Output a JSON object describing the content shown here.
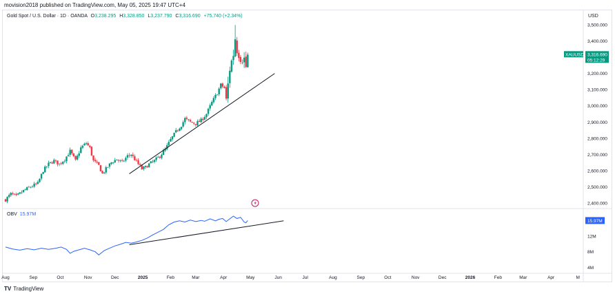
{
  "header": {
    "published_text": "movision2018 published on TradingView.com, May 05, 2025 19:47 UTC+4"
  },
  "legend": {
    "symbol": "Gold Spot / U.S. Dollar · 1D · OANDA",
    "open_label": "O",
    "open": "3,238.295",
    "high_label": "H",
    "high": "3,328.850",
    "low_label": "L",
    "low": "3,237.790",
    "close_label": "C",
    "close": "3,316.690",
    "change": "+75.740 (+2.34%)"
  },
  "currency": "USD",
  "price_tag": {
    "symbol": "XAUUSD",
    "price": "3,316.690",
    "countdown": "05:12:29"
  },
  "obv": {
    "label": "OBV",
    "value": "15.97M",
    "tag": "15.97M"
  },
  "footer": {
    "brand": "TradingView",
    "logo_glyph": "TV"
  },
  "colors": {
    "up": "#089981",
    "down": "#f23645",
    "obv": "#2962ff",
    "trend": "#131722",
    "tag": "#089981",
    "obv_tag": "#2962ff"
  },
  "chart_data": [
    {
      "type": "candlestick",
      "title": "Gold Spot / U.S. Dollar · 1D · OANDA",
      "yaxis": {
        "ticks": [
          2400,
          2500,
          2600,
          2700,
          2800,
          2900,
          3000,
          3100,
          3200,
          3300,
          3400,
          3500
        ],
        "tick_labels": [
          "2,400.000",
          "2,500.000",
          "2,600.000",
          "2,700.000",
          "2,800.000",
          "2,900.000",
          "3,000.000",
          "3,100.000",
          "3,200.000",
          "3,300.000",
          "3,400.000",
          "3,500.000"
        ],
        "ylim": [
          2365,
          3535
        ]
      },
      "xaxis": {
        "labels": [
          "Aug",
          "Sep",
          "Oct",
          "Nov",
          "Dec",
          "2025",
          "Feb",
          "Mar",
          "Apr",
          "May",
          "Jun",
          "Jul",
          "Aug",
          "Sep",
          "Oct",
          "Nov",
          "Dec",
          "2026",
          "Feb",
          "Mar",
          "Apr",
          "M"
        ],
        "label_days": [
          0,
          31,
          61,
          92,
          122,
          153,
          184,
          212,
          243,
          273,
          304,
          334,
          365,
          396,
          426,
          457,
          487,
          518,
          549,
          577,
          608,
          638
        ]
      },
      "close_path": [
        [
          0,
          2420
        ],
        [
          6,
          2455
        ],
        [
          12,
          2440
        ],
        [
          20,
          2475
        ],
        [
          28,
          2500
        ],
        [
          36,
          2520
        ],
        [
          42,
          2600
        ],
        [
          48,
          2640
        ],
        [
          54,
          2660
        ],
        [
          60,
          2640
        ],
        [
          66,
          2670
        ],
        [
          72,
          2720
        ],
        [
          78,
          2660
        ],
        [
          84,
          2740
        ],
        [
          90,
          2770
        ],
        [
          94,
          2740
        ],
        [
          98,
          2660
        ],
        [
          104,
          2630
        ],
        [
          108,
          2580
        ],
        [
          112,
          2610
        ],
        [
          118,
          2650
        ],
        [
          124,
          2670
        ],
        [
          130,
          2650
        ],
        [
          136,
          2690
        ],
        [
          140,
          2700
        ],
        [
          144,
          2670
        ],
        [
          148,
          2640
        ],
        [
          152,
          2610
        ],
        [
          156,
          2620
        ],
        [
          160,
          2640
        ],
        [
          166,
          2660
        ],
        [
          172,
          2690
        ],
        [
          178,
          2730
        ],
        [
          184,
          2790
        ],
        [
          190,
          2840
        ],
        [
          196,
          2880
        ],
        [
          200,
          2920
        ],
        [
          206,
          2900
        ],
        [
          212,
          2890
        ],
        [
          218,
          2910
        ],
        [
          224,
          2950
        ],
        [
          230,
          3020
        ],
        [
          236,
          3080
        ],
        [
          240,
          3130
        ],
        [
          244,
          3110
        ],
        [
          246,
          3030
        ],
        [
          250,
          3230
        ],
        [
          254,
          3320
        ],
        [
          256,
          3420
        ],
        [
          258,
          3350
        ],
        [
          262,
          3300
        ],
        [
          266,
          3290
        ],
        [
          268,
          3240
        ],
        [
          270,
          3316.69
        ]
      ],
      "last_candle": {
        "open": 3238.295,
        "high": 3328.85,
        "low": 3237.79,
        "close": 3316.69
      },
      "trendline": [
        [
          138,
          2580
        ],
        [
          300,
          3200
        ]
      ]
    },
    {
      "type": "line",
      "name": "OBV",
      "yaxis": {
        "ticks": [
          4,
          8,
          12
        ],
        "tick_labels": [
          "4M",
          "8M",
          "12M"
        ],
        "ylim": [
          2.5,
          18.5
        ]
      },
      "last_value": 15.97,
      "series": [
        [
          0,
          9.2
        ],
        [
          8,
          8.7
        ],
        [
          16,
          8.4
        ],
        [
          24,
          8.8
        ],
        [
          32,
          8.5
        ],
        [
          40,
          8.9
        ],
        [
          48,
          8.6
        ],
        [
          56,
          8.9
        ],
        [
          62,
          9.2
        ],
        [
          68,
          8.6
        ],
        [
          72,
          7.6
        ],
        [
          76,
          8.1
        ],
        [
          82,
          8.5
        ],
        [
          88,
          8.9
        ],
        [
          94,
          8.5
        ],
        [
          100,
          8.0
        ],
        [
          104,
          7.2
        ],
        [
          110,
          8.3
        ],
        [
          116,
          8.9
        ],
        [
          122,
          9.5
        ],
        [
          128,
          9.9
        ],
        [
          134,
          10.4
        ],
        [
          140,
          10.2
        ],
        [
          146,
          10.5
        ],
        [
          152,
          10.9
        ],
        [
          158,
          11.5
        ],
        [
          164,
          12.3
        ],
        [
          170,
          13.0
        ],
        [
          176,
          13.7
        ],
        [
          182,
          14.9
        ],
        [
          188,
          15.6
        ],
        [
          194,
          15.9
        ],
        [
          200,
          15.6
        ],
        [
          206,
          16.1
        ],
        [
          212,
          15.7
        ],
        [
          218,
          16.0
        ],
        [
          222,
          15.8
        ],
        [
          228,
          16.4
        ],
        [
          234,
          15.9
        ],
        [
          238,
          16.3
        ],
        [
          242,
          16.5
        ],
        [
          246,
          15.7
        ],
        [
          250,
          16.4
        ],
        [
          254,
          17.1
        ],
        [
          258,
          16.5
        ],
        [
          262,
          16.8
        ],
        [
          266,
          15.6
        ],
        [
          268,
          15.4
        ],
        [
          270,
          15.97
        ]
      ],
      "trendline": [
        [
          138,
          9.8
        ],
        [
          310,
          15.9
        ]
      ]
    }
  ]
}
